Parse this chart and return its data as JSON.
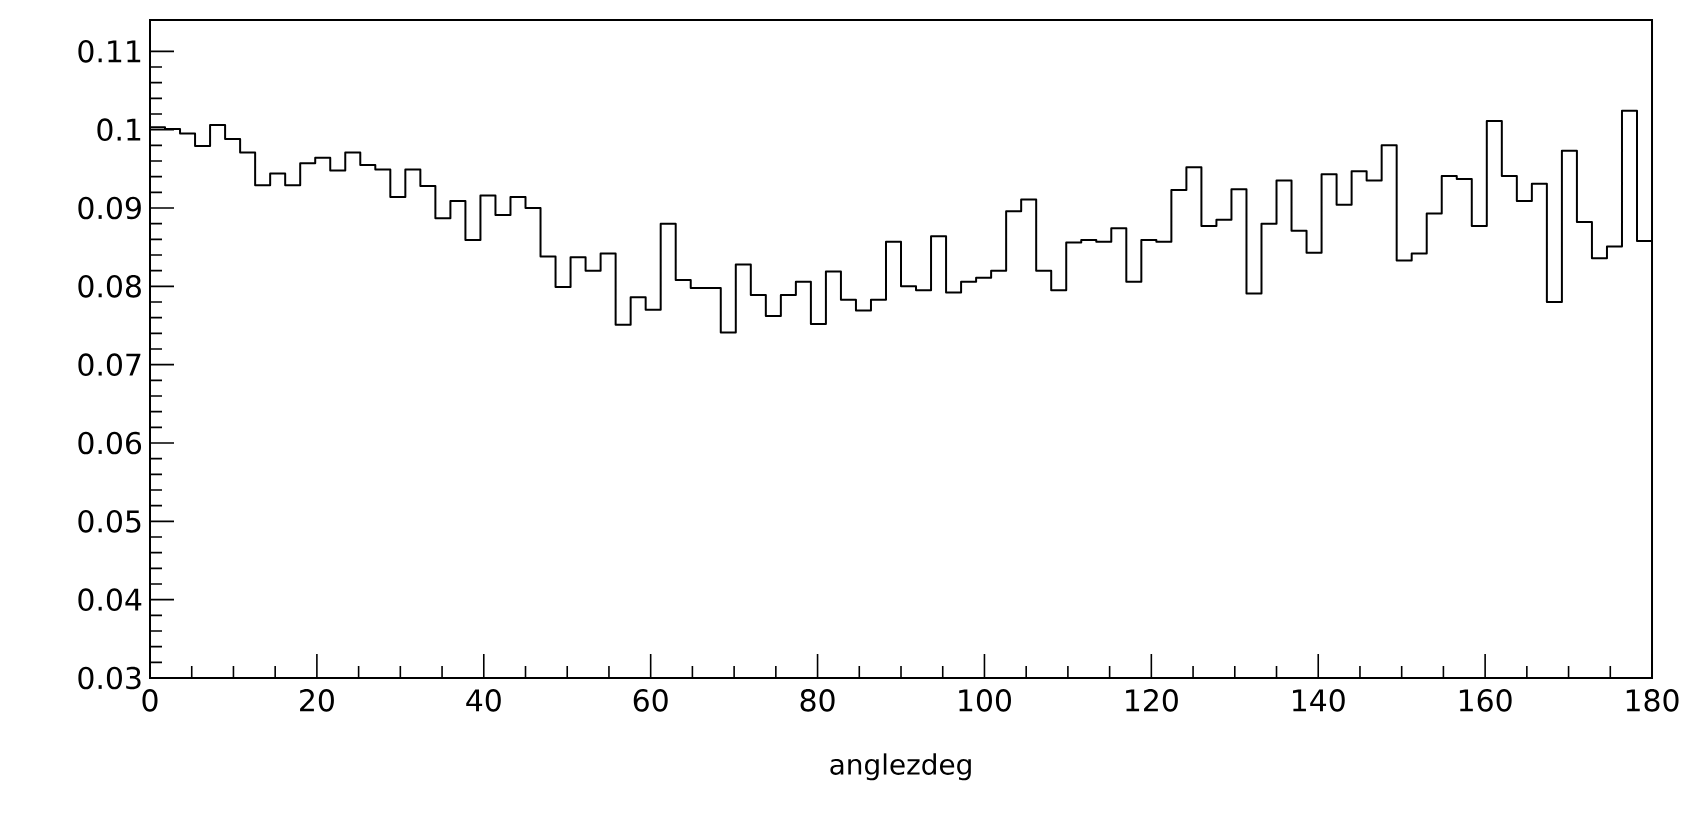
{
  "chart_data": {
    "type": "histogram",
    "xlabel": "anglezdeg",
    "bins": [
      0,
      1.8,
      3.6,
      5.4,
      7.2,
      9,
      10.8,
      12.6,
      14.4,
      16.2,
      18,
      19.8,
      21.6,
      23.4,
      25.2,
      27,
      28.8,
      30.6,
      32.4,
      34.2,
      36,
      37.8,
      39.6,
      41.4,
      43.2,
      45,
      46.8,
      48.6,
      50.4,
      52.2,
      54,
      55.8,
      57.6,
      59.4,
      61.2,
      63,
      64.8,
      66.6,
      68.4,
      70.2,
      72,
      73.8,
      75.6,
      77.4,
      79.2,
      81,
      82.8,
      84.6,
      86.4,
      88.2,
      90,
      91.8,
      93.6,
      95.4,
      97.2,
      99,
      100.8,
      102.6,
      104.4,
      106.2,
      108,
      109.8,
      111.6,
      113.4,
      115.2,
      117,
      118.8,
      120.6,
      122.4,
      124.2,
      126,
      127.8,
      129.6,
      131.4,
      133.2,
      135,
      136.8,
      138.6,
      140.4,
      142.2,
      144,
      145.8,
      147.6,
      149.4,
      151.2,
      153,
      154.8,
      156.6,
      158.4,
      160.2,
      162,
      163.8,
      165.6,
      167.4,
      169.2,
      171,
      172.8,
      174.6,
      176.4,
      178.2,
      180
    ],
    "values": [
      0.1003,
      0.1001,
      0.0995,
      0.0979,
      0.1006,
      0.0988,
      0.0971,
      0.0929,
      0.0944,
      0.0929,
      0.0957,
      0.0964,
      0.0948,
      0.0971,
      0.0955,
      0.0949,
      0.0914,
      0.0949,
      0.0928,
      0.0887,
      0.0909,
      0.0859,
      0.0916,
      0.0891,
      0.0914,
      0.09,
      0.0838,
      0.0799,
      0.0837,
      0.082,
      0.0842,
      0.0751,
      0.0786,
      0.077,
      0.088,
      0.0808,
      0.0798,
      0.0798,
      0.0741,
      0.0828,
      0.0789,
      0.0762,
      0.0789,
      0.0806,
      0.0752,
      0.0819,
      0.0783,
      0.0769,
      0.0783,
      0.0857,
      0.08,
      0.0795,
      0.0864,
      0.0792,
      0.0806,
      0.0811,
      0.082,
      0.0896,
      0.0911,
      0.082,
      0.0795,
      0.0856,
      0.0859,
      0.0857,
      0.0874,
      0.0806,
      0.0859,
      0.0857,
      0.0923,
      0.0952,
      0.0877,
      0.0885,
      0.0924,
      0.0791,
      0.088,
      0.0935,
      0.0871,
      0.0843,
      0.0943,
      0.0904,
      0.0947,
      0.0935,
      0.098,
      0.0833,
      0.0842,
      0.0893,
      0.0941,
      0.0937,
      0.0877,
      0.1011,
      0.0941,
      0.0909,
      0.0931,
      0.078,
      0.0973,
      0.0882,
      0.0836,
      0.0851,
      0.1024,
      0.0858
    ],
    "color": "#000000",
    "xlim": [
      0,
      180
    ],
    "ylim": [
      0.03,
      0.114
    ],
    "xticks": [
      0,
      20,
      40,
      60,
      80,
      100,
      120,
      140,
      160,
      180
    ],
    "yticks": [
      0.03,
      0.04,
      0.05,
      0.06,
      0.07,
      0.08,
      0.09,
      0.1,
      0.11
    ],
    "grid": false
  }
}
